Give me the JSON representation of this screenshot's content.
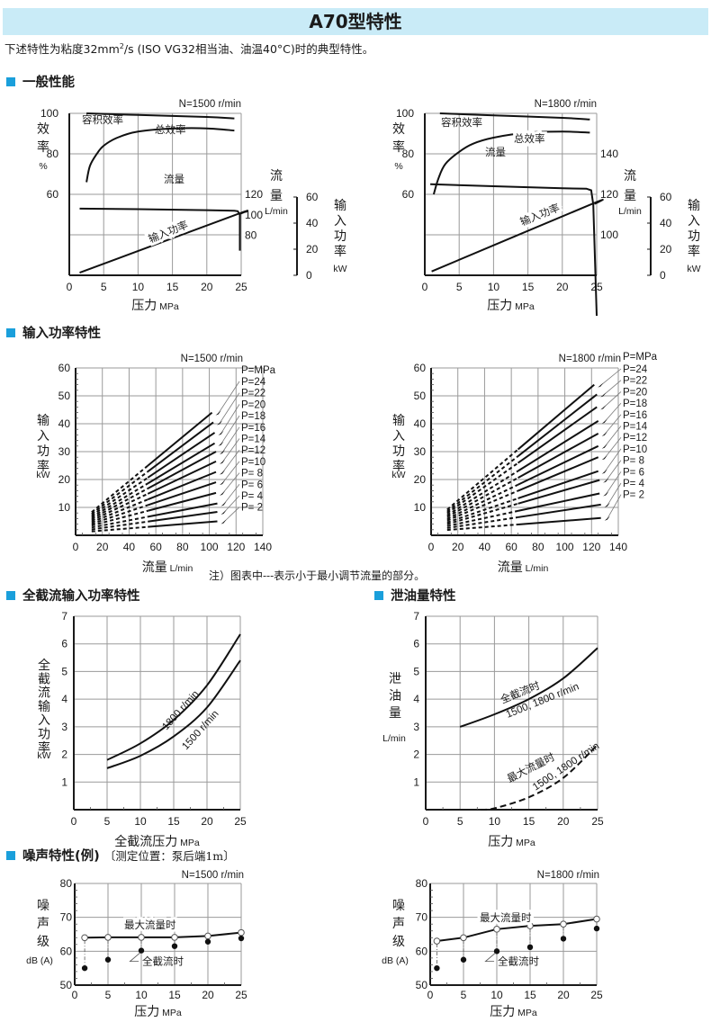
{
  "header": {
    "title": "A70型特性",
    "intro_pre": "下述特性为粘度32mm",
    "intro_sup": "2",
    "intro_post": "/s (ISO VG32相当油、油温40°C)时的典型特性。"
  },
  "sections": {
    "general": "一般性能",
    "input_power": "输入功率特性",
    "cutoff_power": "全截流输入功率特性",
    "drain": "泄油量特性",
    "noise": "噪声特性(例)",
    "noise_sub": "〔测定位置：泵后端1m〕"
  },
  "note": "注）图表中---表示小于最小调节流量的部分。",
  "colors": {
    "accent": "#1a9fdb",
    "title_bg": "#c9ebf7"
  },
  "chart_data": [
    {
      "id": "general_1500",
      "type": "line",
      "title": "N=1500 r/min",
      "xlabel": "压力 MPa",
      "xlim": [
        0,
        25
      ],
      "xticks": [
        0,
        5,
        10,
        15,
        20,
        25
      ],
      "axes": {
        "efficiency": {
          "label": [
            "效",
            "率",
            "%"
          ],
          "ticks": [
            60,
            80,
            100
          ]
        },
        "flow": {
          "label": [
            "流",
            "量",
            "L/min"
          ],
          "ticks": [
            80,
            100,
            120
          ]
        },
        "power": {
          "label": [
            "输",
            "入",
            "功",
            "率",
            "kW"
          ],
          "ticks": [
            0,
            20,
            40,
            60
          ]
        }
      },
      "series": [
        {
          "name": "容积效率",
          "axis": "efficiency",
          "x": [
            2.5,
            10,
            20,
            24
          ],
          "y": [
            100,
            99.2,
            98.2,
            97.5
          ]
        },
        {
          "name": "总效率",
          "axis": "efficiency",
          "x": [
            2.5,
            3,
            4,
            5,
            7,
            10,
            15,
            20,
            24
          ],
          "y": [
            66,
            74,
            80,
            84,
            88,
            91,
            92.5,
            92.6,
            91.5
          ]
        },
        {
          "name": "流量",
          "axis": "flow",
          "x": [
            1.5,
            10,
            20,
            24,
            24.5,
            24.8,
            24.8
          ],
          "y": [
            106,
            105.5,
            104.5,
            104,
            103.5,
            100,
            65
          ]
        },
        {
          "name": "输入功率",
          "axis": "power",
          "x": [
            1.5,
            24,
            24.8
          ],
          "y": [
            2,
            46,
            47
          ]
        }
      ]
    },
    {
      "id": "general_1800",
      "type": "line",
      "title": "N=1800 r/min",
      "xlabel": "压力 MPa",
      "xlim": [
        0,
        25
      ],
      "xticks": [
        0,
        5,
        10,
        15,
        20,
        25
      ],
      "axes": {
        "efficiency": {
          "label": [
            "效",
            "率",
            "%"
          ],
          "ticks": [
            60,
            80,
            100
          ]
        },
        "flow": {
          "label": [
            "流",
            "量",
            "L/min"
          ],
          "ticks": [
            100,
            120,
            140
          ]
        },
        "power": {
          "label": [
            "输",
            "入",
            "功",
            "率",
            "kW"
          ],
          "ticks": [
            0,
            20,
            40,
            60
          ]
        }
      },
      "series": [
        {
          "name": "容积效率",
          "axis": "efficiency",
          "x": [
            2.2,
            10,
            20,
            24
          ],
          "y": [
            100,
            99,
            97.8,
            97
          ]
        },
        {
          "name": "总效率",
          "axis": "efficiency",
          "x": [
            1.3,
            2,
            3,
            5,
            7,
            10,
            15,
            20,
            24
          ],
          "y": [
            60,
            68,
            75,
            81,
            85,
            88,
            90.5,
            91,
            90.5
          ]
        },
        {
          "name": "流量",
          "axis": "flow",
          "x": [
            0.8,
            10,
            20,
            23.5,
            24.2,
            24.5,
            25
          ],
          "y": [
            125,
            124,
            123,
            122.8,
            122,
            115,
            60
          ]
        },
        {
          "name": "输入功率",
          "axis": "power",
          "x": [
            1,
            24,
            24.6
          ],
          "y": [
            3,
            54,
            54.5
          ]
        }
      ]
    },
    {
      "id": "input_power_1500",
      "type": "line",
      "title": "N=1500 r/min",
      "xlabel": "流量 L/min",
      "ylabel": [
        "输",
        "入",
        "功",
        "率",
        "kW"
      ],
      "xlim": [
        0,
        140
      ],
      "ylim": [
        0,
        60
      ],
      "xticks": [
        0,
        20,
        40,
        60,
        80,
        100,
        120,
        140
      ],
      "yticks": [
        10,
        20,
        30,
        40,
        50,
        60
      ],
      "legend_header": "P=MPa",
      "dashed_below_flow": 54,
      "series": [
        {
          "name": "P=24",
          "x": [
            12,
            102
          ],
          "y": [
            8.3,
            44
          ]
        },
        {
          "name": "P=22",
          "x": [
            12,
            103
          ],
          "y": [
            7.7,
            40.5
          ]
        },
        {
          "name": "P=20",
          "x": [
            12,
            104
          ],
          "y": [
            7.1,
            36.8
          ]
        },
        {
          "name": "P=18",
          "x": [
            12,
            104
          ],
          "y": [
            6.5,
            33
          ]
        },
        {
          "name": "P=16",
          "x": [
            12,
            105
          ],
          "y": [
            5.9,
            30
          ]
        },
        {
          "name": "P=14",
          "x": [
            12,
            105
          ],
          "y": [
            5.3,
            26.5
          ]
        },
        {
          "name": "P=12",
          "x": [
            12,
            105
          ],
          "y": [
            4.7,
            22.7
          ]
        },
        {
          "name": "P=10",
          "x": [
            12,
            105
          ],
          "y": [
            4.1,
            19
          ]
        },
        {
          "name": "P= 8",
          "x": [
            12,
            105
          ],
          "y": [
            3.5,
            15.2
          ]
        },
        {
          "name": "P= 6",
          "x": [
            12,
            106
          ],
          "y": [
            2.8,
            11.4
          ]
        },
        {
          "name": "P= 4",
          "x": [
            12,
            106
          ],
          "y": [
            2.1,
            8.4
          ]
        },
        {
          "name": "P= 2",
          "x": [
            12,
            106
          ],
          "y": [
            1.4,
            5
          ]
        }
      ]
    },
    {
      "id": "input_power_1800",
      "type": "line",
      "title": "N=1800 r/min",
      "xlabel": "流量 L/min",
      "ylabel": [
        "输",
        "入",
        "功",
        "率",
        "kW"
      ],
      "xlim": [
        0,
        140
      ],
      "ylim": [
        0,
        60
      ],
      "xticks": [
        0,
        20,
        40,
        60,
        80,
        100,
        120,
        140
      ],
      "yticks": [
        10,
        20,
        30,
        40,
        50,
        60
      ],
      "legend_header": "P=MPa",
      "dashed_below_flow": 65,
      "series": [
        {
          "name": "P=24",
          "x": [
            12,
            122
          ],
          "y": [
            9.2,
            54
          ]
        },
        {
          "name": "P=22",
          "x": [
            12,
            124
          ],
          "y": [
            8.5,
            50.5
          ]
        },
        {
          "name": "P=20",
          "x": [
            12,
            124
          ],
          "y": [
            7.9,
            46
          ]
        },
        {
          "name": "P=18",
          "x": [
            12,
            125
          ],
          "y": [
            7.2,
            41
          ]
        },
        {
          "name": "P=16",
          "x": [
            12,
            125
          ],
          "y": [
            6.6,
            36.5
          ]
        },
        {
          "name": "P=14",
          "x": [
            12,
            125
          ],
          "y": [
            5.9,
            32
          ]
        },
        {
          "name": "P=12",
          "x": [
            12,
            125
          ],
          "y": [
            5.3,
            28
          ]
        },
        {
          "name": "P=10",
          "x": [
            12,
            125
          ],
          "y": [
            4.6,
            23
          ]
        },
        {
          "name": "P= 8",
          "x": [
            12,
            126
          ],
          "y": [
            4,
            19.8
          ]
        },
        {
          "name": "P= 6",
          "x": [
            12,
            126
          ],
          "y": [
            3.3,
            15
          ]
        },
        {
          "name": "P= 4",
          "x": [
            12,
            127
          ],
          "y": [
            2.6,
            11
          ]
        },
        {
          "name": "P= 2",
          "x": [
            12,
            127
          ],
          "y": [
            1.9,
            6.2
          ]
        }
      ]
    },
    {
      "id": "cutoff_power",
      "type": "line",
      "xlabel": "全截流压力 MPa",
      "ylabel": [
        "全",
        "截",
        "流",
        "输",
        "入",
        "功",
        "率",
        "kW"
      ],
      "xlim": [
        0,
        25
      ],
      "ylim": [
        0,
        7
      ],
      "xticks": [
        0,
        5,
        10,
        15,
        20,
        25
      ],
      "yticks": [
        1,
        2,
        3,
        4,
        5,
        6,
        7
      ],
      "series": [
        {
          "name": "1800 r/min",
          "x": [
            5,
            10,
            15,
            20,
            25
          ],
          "y": [
            1.8,
            2.4,
            3.25,
            4.5,
            6.35
          ]
        },
        {
          "name": "1500 r/min",
          "x": [
            5,
            10,
            15,
            20,
            25
          ],
          "y": [
            1.5,
            1.95,
            2.65,
            3.7,
            5.4
          ]
        }
      ]
    },
    {
      "id": "drain",
      "type": "line",
      "xlabel": "压力 MPa",
      "ylabel": [
        "泄",
        "油",
        "量",
        "L/min"
      ],
      "xlim": [
        0,
        25
      ],
      "ylim": [
        0,
        7
      ],
      "xticks": [
        0,
        5,
        10,
        15,
        20,
        25
      ],
      "yticks": [
        1,
        2,
        3,
        4,
        5,
        6,
        7
      ],
      "series": [
        {
          "name": "全截流时",
          "sub": "1500, 1800 r/min",
          "style": "solid",
          "x": [
            5,
            10,
            15,
            20,
            25
          ],
          "y": [
            3.0,
            3.45,
            4.0,
            4.75,
            5.85
          ]
        },
        {
          "name": "最大流量时",
          "sub": "1500, 1800 r/min",
          "style": "dashed",
          "x": [
            8,
            10,
            15,
            20,
            25
          ],
          "y": [
            0,
            0.05,
            0.45,
            1.15,
            2.35
          ]
        }
      ]
    },
    {
      "id": "noise_1500",
      "type": "scatter",
      "title": "N=1500 r/min",
      "xlabel": "压力 MPa",
      "ylabel": [
        "噪",
        "声",
        "级",
        "dB (A)"
      ],
      "xlim": [
        0,
        25
      ],
      "ylim": [
        50,
        80
      ],
      "xticks": [
        0,
        5,
        10,
        15,
        20,
        25
      ],
      "yticks": [
        50,
        60,
        70,
        80
      ],
      "series": [
        {
          "name": "最大流量时",
          "marker": "open",
          "x": [
            1.5,
            5,
            10,
            15,
            20,
            25
          ],
          "y": [
            64,
            64.1,
            64.1,
            64.1,
            64.5,
            65.5
          ]
        },
        {
          "name": "全截流时",
          "marker": "filled",
          "x": [
            1.5,
            5,
            10,
            15,
            20,
            25
          ],
          "y": [
            55,
            57.5,
            60.2,
            61.5,
            62.8,
            63.8
          ]
        }
      ]
    },
    {
      "id": "noise_1800",
      "type": "scatter",
      "title": "N=1800 r/min",
      "xlabel": "压力 MPa",
      "ylabel": [
        "噪",
        "声",
        "级",
        "dB (A)"
      ],
      "xlim": [
        0,
        25
      ],
      "ylim": [
        50,
        80
      ],
      "xticks": [
        0,
        5,
        10,
        15,
        20,
        25
      ],
      "yticks": [
        50,
        60,
        70,
        80
      ],
      "series": [
        {
          "name": "最大流量时",
          "marker": "open",
          "x": [
            1,
            5,
            10,
            15,
            20,
            25
          ],
          "y": [
            63,
            64,
            66.5,
            67.5,
            68,
            69.5
          ]
        },
        {
          "name": "全截流时",
          "marker": "filled",
          "x": [
            1,
            5,
            10,
            15,
            20,
            25
          ],
          "y": [
            55,
            57.5,
            60,
            61.2,
            63.7,
            66.7
          ]
        }
      ]
    }
  ]
}
